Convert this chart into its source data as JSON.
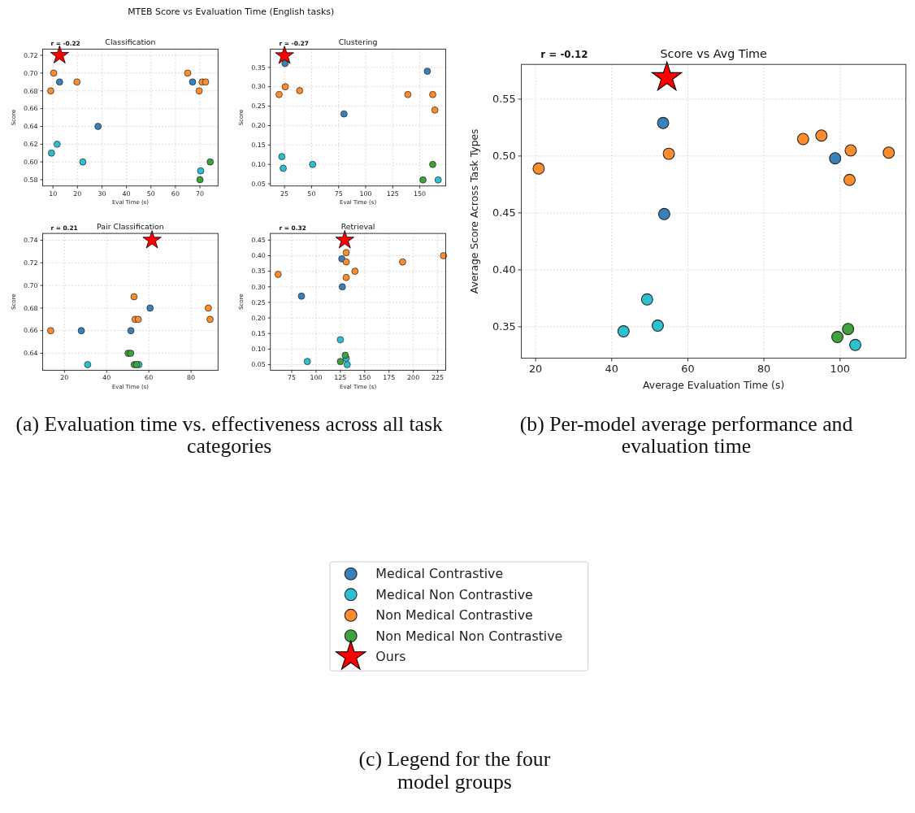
{
  "chart_data": [
    {
      "type": "scatter",
      "title": "Classification",
      "xlabel": "Eval Time (s)",
      "ylabel": "Score",
      "grid": true,
      "legend": false,
      "xlim": [
        5.8,
        77.4
      ],
      "xticks": [
        10,
        20,
        30,
        40,
        50,
        60,
        70
      ],
      "ylim": [
        0.573,
        0.727
      ],
      "yticks": [
        0.58,
        {
          "value": 0.6,
          "label": "0.60"
        },
        0.62,
        0.64,
        0.66,
        0.68,
        {
          "value": 0.7,
          "label": "0.70"
        },
        0.72
      ],
      "annotations": [
        "r = -0.22",
        "MTEB Score vs Evaluation Time (English tasks)"
      ],
      "series": [
        {
          "color": "#3a81ba",
          "marker": "circle",
          "x": [
            12.7,
            28.4,
            67
          ],
          "values": [
            0.69,
            0.64,
            0.69
          ]
        },
        {
          "color": "#2cc0d0",
          "marker": "circle",
          "x": [
            9.4,
            11.7,
            22.2,
            70.3
          ],
          "values": [
            0.61,
            0.62,
            0.6,
            0.59
          ]
        },
        {
          "color": "#fd8d2c",
          "marker": "circle",
          "x": [
            10.3,
            9.1,
            19.8,
            65,
            69.7,
            70.9,
            72.3
          ],
          "values": [
            0.7,
            0.68,
            0.69,
            0.7,
            0.68,
            0.69,
            0.69
          ]
        },
        {
          "color": "#3da43d",
          "marker": "circle",
          "x": [
            74.2,
            70
          ],
          "values": [
            0.6,
            0.58
          ]
        },
        {
          "color": "#ff0000",
          "marker": "star",
          "x": [
            12.7
          ],
          "values": [
            0.72
          ]
        }
      ]
    },
    {
      "type": "scatter",
      "title": "Clustering",
      "xlabel": "Eval Time (s)",
      "ylabel": "Score",
      "grid": true,
      "legend": false,
      "xlim": [
        11.9,
        174
      ],
      "xticks": [
        25,
        50,
        75,
        100,
        125,
        150
      ],
      "ylim": [
        0.0445,
        0.397
      ],
      "yticks": [
        0.05,
        {
          "value": 0.1,
          "label": "0.10"
        },
        0.15,
        {
          "value": 0.2,
          "label": "0.20"
        },
        0.25,
        {
          "value": 0.3,
          "label": "0.30"
        },
        0.35
      ],
      "annotations": [
        "r = -0.27"
      ],
      "series": [
        {
          "color": "#3a81ba",
          "marker": "circle",
          "x": [
            25.5,
            80,
            157
          ],
          "values": [
            0.36,
            0.23,
            0.34
          ]
        },
        {
          "color": "#2cc0d0",
          "marker": "circle",
          "x": [
            22.5,
            23.8,
            51,
            167
          ],
          "values": [
            0.12,
            0.09,
            0.1,
            0.06
          ]
        },
        {
          "color": "#fd8d2c",
          "marker": "circle",
          "x": [
            20,
            25.7,
            39,
            139,
            162,
            164
          ],
          "values": [
            0.28,
            0.3,
            0.29,
            0.28,
            0.28,
            0.24
          ]
        },
        {
          "color": "#3da43d",
          "marker": "circle",
          "x": [
            153,
            162
          ],
          "values": [
            0.06,
            0.1
          ]
        },
        {
          "color": "#ff0000",
          "marker": "star",
          "x": [
            25
          ],
          "values": [
            0.38
          ]
        }
      ]
    },
    {
      "type": "scatter",
      "title": "Pair Classification",
      "xlabel": "Eval Time (s)",
      "ylabel": "Score",
      "grid": true,
      "legend": false,
      "xlim": [
        9.7,
        92.8
      ],
      "xticks": [
        20,
        40,
        60,
        80
      ],
      "ylim": [
        0.625,
        0.746
      ],
      "yticks": [
        0.64,
        0.66,
        0.68,
        {
          "value": 0.7,
          "label": "0.70"
        },
        0.72,
        0.74
      ],
      "annotations": [
        "r = 0.21",
        "(a) Evaluation time vs. effectiveness across all task categories"
      ],
      "series": [
        {
          "color": "#3a81ba",
          "marker": "circle",
          "x": [
            28,
            51.5,
            60.6
          ],
          "values": [
            0.66,
            0.66,
            0.68
          ]
        },
        {
          "color": "#2cc0d0",
          "marker": "circle",
          "x": [
            31,
            55.3
          ],
          "values": [
            0.63,
            0.63
          ]
        },
        {
          "color": "#fd8d2c",
          "marker": "circle",
          "x": [
            13.5,
            53,
            53.5,
            55,
            88.2,
            89
          ],
          "values": [
            0.66,
            0.69,
            0.67,
            0.67,
            0.68,
            0.67
          ]
        },
        {
          "color": "#3da43d",
          "marker": "circle",
          "x": [
            50.2,
            51.4,
            53.1,
            54.2
          ],
          "values": [
            0.64,
            0.64,
            0.63,
            0.63
          ]
        },
        {
          "color": "#ff0000",
          "marker": "star",
          "x": [
            61.5
          ],
          "values": [
            0.74
          ]
        }
      ]
    },
    {
      "type": "scatter",
      "title": "Retrieval",
      "xlabel": "Eval Time (s)",
      "ylabel": "Score",
      "grid": true,
      "legend": false,
      "xlim": [
        53,
        233.3
      ],
      "xticks": [
        75,
        100,
        125,
        150,
        175,
        200,
        225
      ],
      "ylim": [
        0.0318,
        0.4716
      ],
      "yticks": [
        0.05,
        {
          "value": 0.1,
          "label": "0.10"
        },
        0.15,
        {
          "value": 0.2,
          "label": "0.20"
        },
        0.25,
        {
          "value": 0.3,
          "label": "0.30"
        },
        0.35,
        {
          "value": 0.4,
          "label": "0.40"
        },
        0.45
      ],
      "annotations": [
        "r = 0.32"
      ],
      "series": [
        {
          "color": "#3a81ba",
          "marker": "circle",
          "x": [
            126.5,
            85,
            127
          ],
          "values": [
            0.39,
            0.27,
            0.3
          ]
        },
        {
          "color": "#2cc0d0",
          "marker": "circle",
          "x": [
            125,
            91,
            131,
            132
          ],
          "values": [
            0.13,
            0.06,
            0.07,
            0.05
          ]
        },
        {
          "color": "#fd8d2c",
          "marker": "circle",
          "x": [
            61,
            131,
            131,
            140,
            131,
            189,
            231
          ],
          "values": [
            0.34,
            0.41,
            0.38,
            0.35,
            0.33,
            0.38,
            0.4
          ]
        },
        {
          "color": "#3da43d",
          "marker": "circle",
          "x": [
            125,
            130
          ],
          "values": [
            0.06,
            0.08
          ]
        },
        {
          "color": "#ff0000",
          "marker": "star",
          "x": [
            129.5
          ],
          "values": [
            0.45
          ]
        }
      ]
    },
    {
      "type": "scatter",
      "title": "Score vs Avg Time",
      "xlabel": "Average Evaluation Time (s)",
      "ylabel": "Average Score Across Task Types",
      "grid": true,
      "legend": "bottom",
      "xlim": [
        16.25,
        117.3
      ],
      "xticks": [
        20,
        40,
        60,
        80,
        100
      ],
      "ylim": [
        0.3224,
        0.5805
      ],
      "yticks": [
        0.35,
        {
          "value": 0.4,
          "label": "0.40"
        },
        0.45,
        {
          "value": 0.5,
          "label": "0.50"
        },
        0.55
      ],
      "annotations": [
        "r = -0.12",
        "(b) Per-model average performance and evaluation time",
        "(c) Legend for the four model groups"
      ],
      "series": [
        {
          "name": "Medical Contrastive",
          "color": "#3a81ba",
          "marker": "circle",
          "x": [
            53.5,
            53.8,
            98.7
          ],
          "values": [
            0.529,
            0.449,
            0.498
          ]
        },
        {
          "name": "Medical Non Contrastive",
          "color": "#2cc0d0",
          "marker": "circle",
          "x": [
            43.1,
            49.3,
            52.1,
            104
          ],
          "values": [
            0.346,
            0.374,
            0.351,
            0.334
          ]
        },
        {
          "name": "Non Medical Contrastive",
          "color": "#fd8d2c",
          "marker": "circle",
          "x": [
            20.8,
            55,
            90.3,
            95.1,
            102.8,
            102.5,
            112.8
          ],
          "values": [
            0.489,
            0.502,
            0.515,
            0.518,
            0.505,
            0.479,
            0.503
          ]
        },
        {
          "name": "Non Medical Non Contrastive",
          "color": "#3da43d",
          "marker": "circle",
          "x": [
            99.3,
            102.1
          ],
          "values": [
            0.341,
            0.348
          ]
        },
        {
          "name": "Ours",
          "color": "#ff0000",
          "marker": "star",
          "x": [
            54.5
          ],
          "values": [
            0.569
          ]
        }
      ]
    }
  ]
}
